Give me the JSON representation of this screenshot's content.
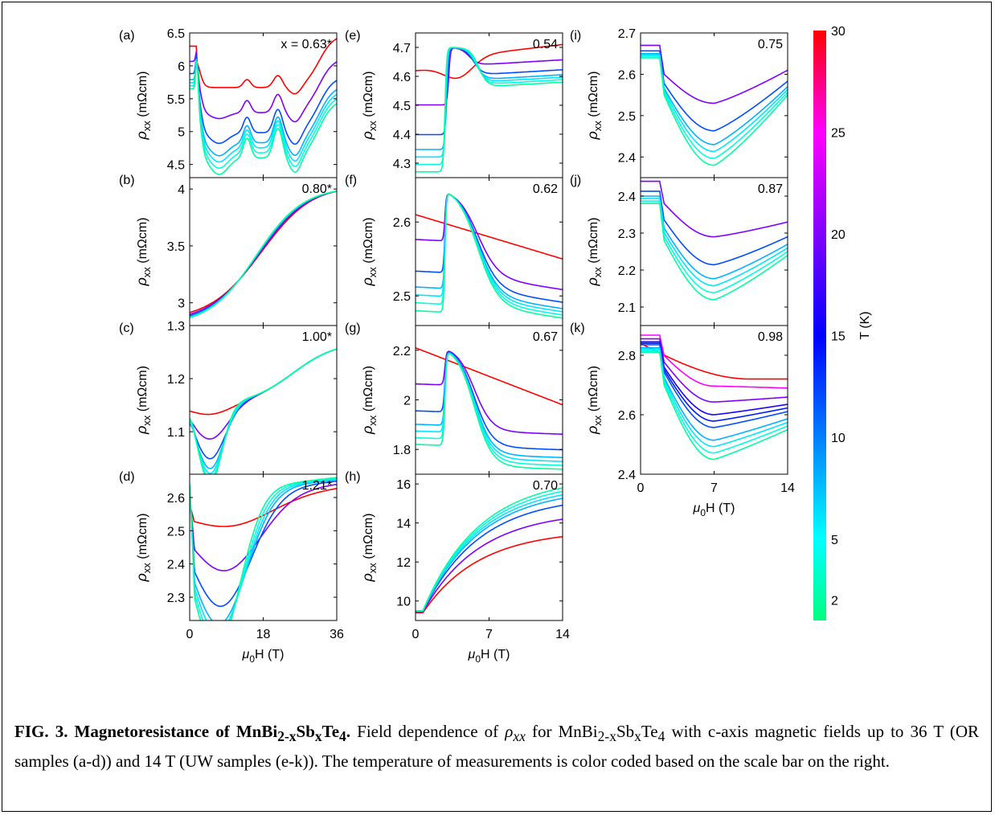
{
  "x_axis_label": "μ0H (T)",
  "y_axis_label": "ρxx (mΩcm)",
  "colorbar": {
    "label": "T (K)",
    "range": [
      1,
      30
    ],
    "ticks": [
      2,
      5,
      10,
      15,
      20,
      25,
      30
    ],
    "colors": [
      "#00ff80",
      "#00ffff",
      "#0080ff",
      "#0000ff",
      "#8000ff",
      "#ff00ff",
      "#ff0000"
    ]
  },
  "caption": {
    "bold_title_a": "FIG. 3. Magnetoresistance of MnBi",
    "bold_sub1": "2-x",
    "bold_title_b": "Sb",
    "bold_sub2": "x",
    "bold_title_c": "Te",
    "bold_sub3": "4",
    "bold_title_d": ".",
    "text_a": " Field dependence of ",
    "rho": "ρ",
    "rho_sub": "xx",
    "text_b": " for MnBi",
    "sub1": "2-x",
    "text_c": "Sb",
    "sub2": "x",
    "text_d": "Te",
    "sub3": "4",
    "text_e": " with c-axis magnetic fields up to 36 T (OR samples (a-d)) and 14 T (UW samples (e-k)). The temperature of measurements is color coded based on the scale bar on the right."
  },
  "chart_data": [
    {
      "panel": "(a)",
      "x": "0.63*",
      "label_text": "x = 0.63*",
      "type": "line",
      "xlim": [
        0,
        36
      ],
      "xticks": [
        0,
        18,
        36
      ],
      "ylim": [
        4.3,
        6.5
      ],
      "yticks": [
        4.5,
        5,
        5.5,
        6,
        6.5
      ],
      "temperatures_K": [
        2,
        4,
        6,
        8,
        12,
        20,
        30
      ],
      "key_points": {
        "x": [
          0,
          1.5,
          5,
          9,
          14,
          18,
          22,
          26,
          28,
          32,
          36
        ],
        "T2": [
          5.65,
          5.75,
          4.37,
          4.45,
          4.6,
          4.75,
          4.7,
          4.55,
          4.72,
          5.4,
          5.85
        ],
        "T30": [
          6.3,
          6.25,
          5.7,
          5.45,
          5.3,
          5.3,
          5.35,
          5.25,
          5.2,
          5.6,
          5.9
        ]
      }
    },
    {
      "panel": "(b)",
      "x": "0.80*",
      "label_text": "0.80*",
      "type": "line",
      "xlim": [
        0,
        36
      ],
      "xticks": [
        0,
        18,
        36
      ],
      "ylim": [
        2.8,
        4.1
      ],
      "yticks": [
        3,
        3.5,
        4
      ],
      "temperatures_K": [
        2,
        6,
        12,
        20,
        30
      ],
      "key_points": {
        "x": [
          0,
          5,
          9,
          18,
          27,
          36
        ],
        "T2": [
          2.8,
          2.9,
          3.05,
          3.5,
          3.8,
          4.05
        ],
        "T30": [
          2.86,
          2.9,
          3.0,
          3.4,
          3.75,
          4.0
        ]
      }
    },
    {
      "panel": "(c)",
      "x": "1.00*",
      "label_text": "1.00*",
      "type": "line",
      "xlim": [
        0,
        36
      ],
      "xticks": [
        0,
        18,
        36
      ],
      "ylim": [
        1.02,
        1.3
      ],
      "yticks": [
        1.1,
        1.2,
        1.3
      ],
      "temperatures_K": [
        2,
        4,
        6,
        8,
        12,
        20,
        30
      ],
      "key_points": {
        "x": [
          0,
          1,
          5,
          9,
          18,
          27,
          36
        ],
        "T2": [
          1.15,
          1.16,
          1.03,
          1.06,
          1.15,
          1.23,
          1.27
        ],
        "T30": [
          1.16,
          1.15,
          1.14,
          1.14,
          1.18,
          1.23,
          1.27
        ]
      }
    },
    {
      "panel": "(d)",
      "x": "1.21*",
      "label_text": "1.21*",
      "type": "line",
      "xlim": [
        0,
        36
      ],
      "xticks": [
        0,
        18,
        36
      ],
      "ylim": [
        2.23,
        2.67
      ],
      "yticks": [
        2.3,
        2.4,
        2.5,
        2.6
      ],
      "temperatures_K": [
        2,
        4,
        6,
        8,
        12,
        20,
        30
      ],
      "key_points": {
        "x": [
          0,
          1,
          5,
          9,
          18,
          27,
          36
        ],
        "T2": [
          2.64,
          2.65,
          2.24,
          2.26,
          2.36,
          2.5,
          2.62
        ],
        "T30": [
          2.58,
          2.56,
          2.52,
          2.49,
          2.5,
          2.57,
          2.64
        ]
      }
    },
    {
      "panel": "(e)",
      "x": "0.54",
      "label_text": "0.54",
      "type": "line",
      "xlim": [
        0,
        14
      ],
      "xticks": [
        0,
        7,
        14
      ],
      "ylim": [
        4.25,
        4.75
      ],
      "yticks": [
        4.3,
        4.4,
        4.5,
        4.6,
        4.7
      ],
      "temperatures_K": [
        2,
        4,
        6,
        8,
        12,
        20,
        30
      ],
      "key_points": {
        "x": [
          0,
          2.5,
          3,
          5,
          6.5,
          14
        ],
        "T2": [
          4.27,
          4.3,
          4.7,
          4.68,
          4.53,
          4.57
        ],
        "T30": [
          4.62,
          4.58,
          4.6,
          4.65,
          4.66,
          4.68
        ]
      }
    },
    {
      "panel": "(f)",
      "x": "0.62",
      "label_text": "0.62",
      "type": "line",
      "xlim": [
        0,
        14
      ],
      "xticks": [
        0,
        7,
        14
      ],
      "ylim": [
        2.46,
        2.66
      ],
      "yticks": [
        2.5,
        2.6
      ],
      "temperatures_K": [
        2,
        4,
        6,
        8,
        12,
        20,
        30
      ],
      "key_points": {
        "x": [
          0,
          2.8,
          3,
          6,
          10,
          14
        ],
        "T2": [
          2.48,
          2.48,
          2.65,
          2.53,
          2.5,
          2.48
        ],
        "T30": [
          2.61,
          2.6,
          2.59,
          2.57,
          2.56,
          2.55
        ]
      }
    },
    {
      "panel": "(g)",
      "x": "0.67",
      "label_text": "0.67",
      "type": "line",
      "xlim": [
        0,
        14
      ],
      "xticks": [
        0,
        7,
        14
      ],
      "ylim": [
        1.7,
        2.3
      ],
      "yticks": [
        1.8,
        2,
        2.2
      ],
      "temperatures_K": [
        2,
        4,
        6,
        8,
        12,
        20,
        30
      ],
      "key_points": {
        "x": [
          0,
          2.8,
          3,
          6,
          10,
          14
        ],
        "T2": [
          1.82,
          1.84,
          2.22,
          1.85,
          1.78,
          1.72
        ],
        "T30": [
          2.2,
          2.18,
          2.18,
          2.12,
          2.05,
          1.98
        ]
      }
    },
    {
      "panel": "(h)",
      "x": "0.70",
      "label_text": "0.70",
      "type": "line",
      "xlim": [
        0,
        14
      ],
      "xticks": [
        0,
        7,
        14
      ],
      "ylim": [
        9,
        16.5
      ],
      "yticks": [
        10,
        12,
        14,
        16
      ],
      "temperatures_K": [
        2,
        4,
        6,
        8,
        12,
        20,
        30
      ],
      "key_points": {
        "x": [
          0,
          2,
          5,
          9,
          14
        ],
        "T2": [
          9.5,
          10.2,
          13,
          14.5,
          15.8
        ],
        "T30": [
          9.4,
          9.8,
          11.2,
          12.5,
          13.3
        ]
      }
    },
    {
      "panel": "(i)",
      "x": "0.75",
      "label_text": "0.75",
      "type": "line",
      "xlim": [
        0,
        14
      ],
      "xticks": [
        0,
        7,
        14
      ],
      "ylim": [
        2.35,
        2.7
      ],
      "yticks": [
        2.4,
        2.5,
        2.6,
        2.7
      ],
      "temperatures_K": [
        2,
        4,
        6,
        8,
        12,
        20
      ],
      "key_points": {
        "x": [
          0,
          2,
          7,
          14
        ],
        "T2": [
          2.64,
          2.65,
          2.38,
          2.55
        ],
        "T20": [
          2.66,
          2.66,
          2.53,
          2.6
        ]
      }
    },
    {
      "panel": "(j)",
      "x": "0.87",
      "label_text": "0.87",
      "type": "line",
      "xlim": [
        0,
        14
      ],
      "xticks": [
        0,
        7,
        14
      ],
      "ylim": [
        2.05,
        2.45
      ],
      "yticks": [
        2.1,
        2.2,
        2.3,
        2.4
      ],
      "temperatures_K": [
        2,
        4,
        6,
        8,
        12,
        20
      ],
      "key_points": {
        "x": [
          0,
          2,
          7,
          14
        ],
        "T2": [
          2.38,
          2.38,
          2.12,
          2.24
        ],
        "T20": [
          2.44,
          2.44,
          2.29,
          2.33
        ]
      }
    },
    {
      "panel": "(k)",
      "x": "0.98",
      "label_text": "0.98",
      "type": "line",
      "xlim": [
        0,
        14
      ],
      "xticks": [
        0,
        7,
        14
      ],
      "ylim": [
        2.4,
        2.9
      ],
      "yticks": [
        2.4,
        2.6,
        2.8
      ],
      "temperatures_K": [
        2,
        4,
        6,
        8,
        12,
        14,
        16,
        20,
        25,
        30
      ],
      "key_points": {
        "x": [
          0,
          2,
          7,
          14
        ],
        "T2": [
          2.81,
          2.82,
          2.45,
          2.55
        ],
        "T30": [
          2.84,
          2.82,
          2.76,
          2.74
        ]
      }
    }
  ]
}
